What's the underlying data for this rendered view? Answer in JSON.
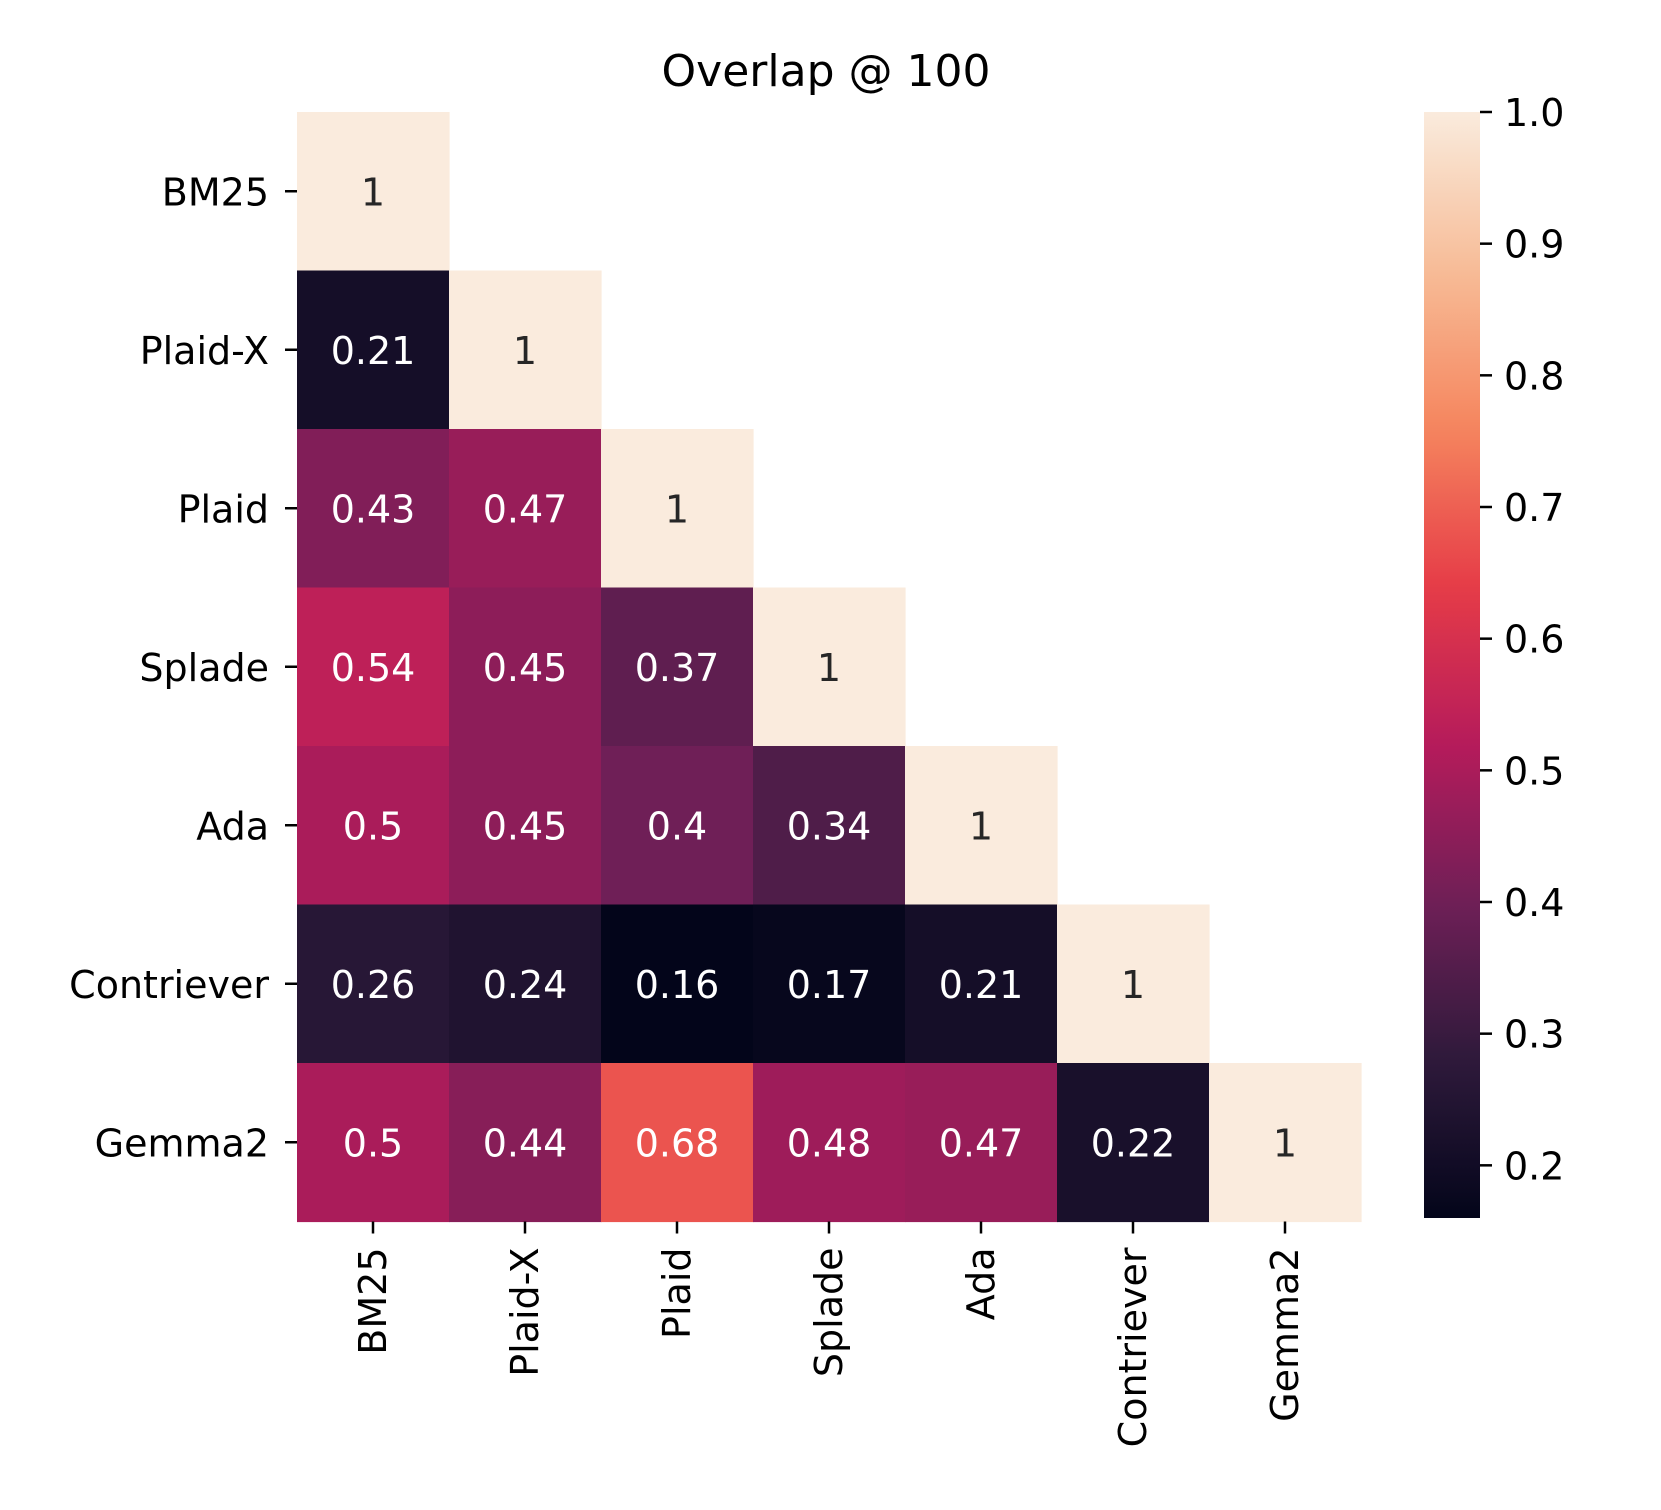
{
  "chart_data": {
    "type": "heatmap",
    "title": "Overlap @ 100",
    "xlabel": "",
    "ylabel": "",
    "categories": [
      "BM25",
      "Plaid-X",
      "Plaid",
      "Splade",
      "Ada",
      "Contriever",
      "Gemma2"
    ],
    "matrix": [
      [
        1,
        null,
        null,
        null,
        null,
        null,
        null
      ],
      [
        0.21,
        1,
        null,
        null,
        null,
        null,
        null
      ],
      [
        0.43,
        0.47,
        1,
        null,
        null,
        null,
        null
      ],
      [
        0.54,
        0.45,
        0.37,
        1,
        null,
        null,
        null
      ],
      [
        0.5,
        0.45,
        0.4,
        0.34,
        1,
        null,
        null
      ],
      [
        0.26,
        0.24,
        0.16,
        0.17,
        0.21,
        1,
        null
      ],
      [
        0.5,
        0.44,
        0.68,
        0.48,
        0.47,
        0.22,
        1
      ]
    ],
    "labels": [
      [
        "1",
        "",
        "",
        "",
        "",
        "",
        ""
      ],
      [
        "0.21",
        "1",
        "",
        "",
        "",
        "",
        ""
      ],
      [
        "0.43",
        "0.47",
        "1",
        "",
        "",
        "",
        ""
      ],
      [
        "0.54",
        "0.45",
        "0.37",
        "1",
        "",
        "",
        ""
      ],
      [
        "0.5",
        "0.45",
        "0.4",
        "0.34",
        "1",
        "",
        ""
      ],
      [
        "0.26",
        "0.24",
        "0.16",
        "0.17",
        "0.21",
        "1",
        ""
      ],
      [
        "0.5",
        "0.44",
        "0.68",
        "0.48",
        "0.47",
        "0.22",
        "1"
      ]
    ],
    "colorbar": {
      "vmin": 0.16,
      "vmax": 1.0,
      "ticks": [
        0.2,
        0.3,
        0.4,
        0.5,
        0.6,
        0.7,
        0.8,
        0.9,
        1.0
      ],
      "tick_labels": [
        "0.2",
        "0.3",
        "0.4",
        "0.5",
        "0.6",
        "0.7",
        "0.8",
        "0.9",
        "1.0"
      ]
    },
    "colormap": "rocket",
    "colormap_stops": [
      "#03051a",
      "#2e1a3b",
      "#6f1f57",
      "#b61b5b",
      "#e63c47",
      "#f5855e",
      "#f7bc97",
      "#faebdd"
    ],
    "mask": "upper-triangle"
  }
}
